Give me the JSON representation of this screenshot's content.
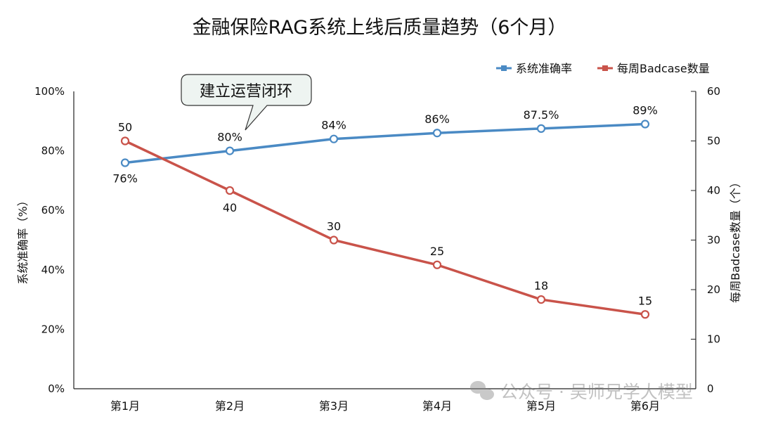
{
  "chart_data": {
    "type": "line",
    "title": "金融保险RAG系统上线后质量趋势（6个月）",
    "categories": [
      "第1月",
      "第2月",
      "第3月",
      "第4月",
      "第5月",
      "第6月"
    ],
    "series": [
      {
        "name": "系统准确率",
        "axis": "left",
        "color": "#4a8ac4",
        "values": [
          76,
          80,
          84,
          86,
          87.5,
          89
        ],
        "labels": [
          "76%",
          "80%",
          "84%",
          "86%",
          "87.5%",
          "89%"
        ]
      },
      {
        "name": "每周Badcase数量",
        "axis": "right",
        "color": "#c9534a",
        "values": [
          50,
          40,
          30,
          25,
          18,
          15
        ],
        "labels": [
          "50",
          "40",
          "30",
          "25",
          "18",
          "15"
        ]
      }
    ],
    "ylabel_left": "系统准确率（%）",
    "ylabel_right": "每周Badcase数量（个）",
    "ylim_left": [
      0,
      100
    ],
    "ylim_right": [
      0,
      60
    ],
    "yticks_left": [
      "0%",
      "20%",
      "40%",
      "60%",
      "80%",
      "100%"
    ],
    "yticks_right": [
      "0",
      "10",
      "20",
      "30",
      "40",
      "50",
      "60"
    ],
    "legend_position": "top-right",
    "grid": false,
    "annotation": {
      "text": "建立运营闭环",
      "category": "第2月"
    }
  },
  "watermark": "公众号 · 吴师兄学大模型"
}
